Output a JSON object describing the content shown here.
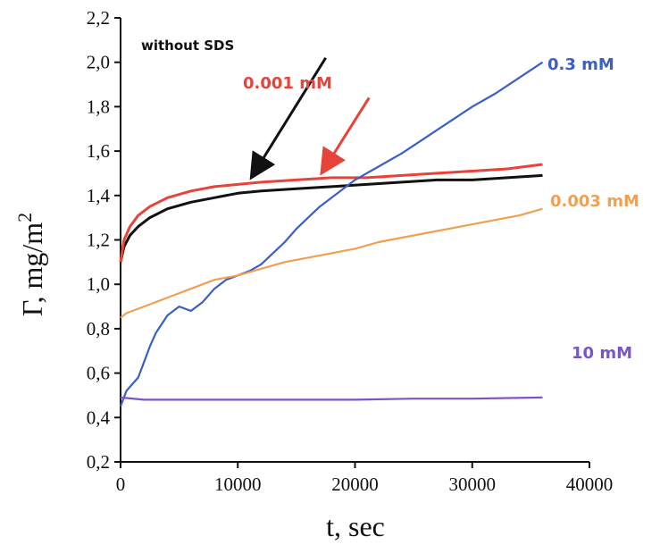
{
  "chart_data": {
    "type": "line",
    "xlabel": "t, sec",
    "ylabel": "Γ, mg/m",
    "ylabel_superscript": "2",
    "xlim": [
      0,
      40000
    ],
    "ylim": [
      0.2,
      2.2
    ],
    "x_ticks": [
      "0",
      "10000",
      "20000",
      "30000",
      "40000"
    ],
    "y_ticks": [
      "0,2",
      "0,4",
      "0,6",
      "0,8",
      "1,0",
      "1,2",
      "1,4",
      "1,6",
      "1,8",
      "2,0",
      "2,2"
    ],
    "grid": false,
    "colors": {
      "axis": "#111111",
      "without_sds": "#111111",
      "mM_0_001": "#e8433a",
      "mM_0_3": "#3b5fc4",
      "mM_0_003": "#f0a050",
      "mM_10": "#7a55c8"
    },
    "series": [
      {
        "name": "without SDS",
        "color": "#111111",
        "x": [
          0,
          300,
          800,
          1500,
          2500,
          4000,
          6000,
          8000,
          10000,
          12000,
          15000,
          18000,
          21000,
          24000,
          27000,
          30000,
          33000,
          36000
        ],
        "y": [
          1.1,
          1.17,
          1.22,
          1.26,
          1.3,
          1.34,
          1.37,
          1.39,
          1.41,
          1.42,
          1.43,
          1.44,
          1.45,
          1.46,
          1.47,
          1.47,
          1.48,
          1.49
        ]
      },
      {
        "name": "0.001 mM",
        "color": "#e8433a",
        "x": [
          0,
          300,
          800,
          1500,
          2500,
          4000,
          6000,
          8000,
          10000,
          12000,
          15000,
          18000,
          21000,
          24000,
          27000,
          30000,
          33000,
          36000
        ],
        "y": [
          1.1,
          1.2,
          1.26,
          1.31,
          1.35,
          1.39,
          1.42,
          1.44,
          1.45,
          1.46,
          1.47,
          1.48,
          1.48,
          1.49,
          1.5,
          1.51,
          1.52,
          1.54
        ]
      },
      {
        "name": "0.3 mM",
        "color": "#3b5fc4",
        "x": [
          0,
          500,
          1000,
          1500,
          2000,
          2500,
          3000,
          4000,
          5000,
          6000,
          7000,
          8000,
          9000,
          10000,
          11000,
          12000,
          13000,
          14000,
          15000,
          16000,
          17000,
          18000,
          19000,
          20000,
          21000,
          22000,
          24000,
          26000,
          28000,
          30000,
          32000,
          34000,
          36000
        ],
        "y": [
          0.45,
          0.52,
          0.55,
          0.58,
          0.65,
          0.72,
          0.78,
          0.86,
          0.9,
          0.88,
          0.92,
          0.98,
          1.02,
          1.04,
          1.06,
          1.09,
          1.14,
          1.19,
          1.25,
          1.3,
          1.35,
          1.39,
          1.43,
          1.47,
          1.5,
          1.53,
          1.59,
          1.66,
          1.73,
          1.8,
          1.86,
          1.93,
          2.0
        ]
      },
      {
        "name": "0.003 mM",
        "color": "#f0a050",
        "x": [
          0,
          500,
          1000,
          2000,
          3000,
          4000,
          5000,
          6000,
          8000,
          10000,
          12000,
          14000,
          16000,
          18000,
          20000,
          22000,
          24000,
          26000,
          28000,
          30000,
          32000,
          34000,
          36000
        ],
        "y": [
          0.85,
          0.87,
          0.88,
          0.9,
          0.92,
          0.94,
          0.96,
          0.98,
          1.02,
          1.04,
          1.07,
          1.1,
          1.12,
          1.14,
          1.16,
          1.19,
          1.21,
          1.23,
          1.25,
          1.27,
          1.29,
          1.31,
          1.34
        ]
      },
      {
        "name": "10 mM",
        "color": "#7a55c8",
        "x": [
          0,
          2000,
          6000,
          10000,
          15000,
          20000,
          25000,
          30000,
          36000
        ],
        "y": [
          0.49,
          0.48,
          0.48,
          0.48,
          0.48,
          0.48,
          0.485,
          0.485,
          0.49
        ]
      }
    ],
    "annotations": {
      "without_sds": "without SDS",
      "mM_0_001": "0.001 mM",
      "mM_0_3": "0.3 mM",
      "mM_0_003": "0.003 mM",
      "mM_10": "10 mM"
    },
    "arrows": [
      {
        "label": "without SDS",
        "from": [
          17500,
          2.02
        ],
        "to": [
          11500,
          1.51
        ],
        "color": "#111111"
      },
      {
        "label": "0.001 mM",
        "from": [
          21200,
          1.84
        ],
        "to": [
          17500,
          1.53
        ],
        "color": "#e8433a"
      }
    ]
  }
}
